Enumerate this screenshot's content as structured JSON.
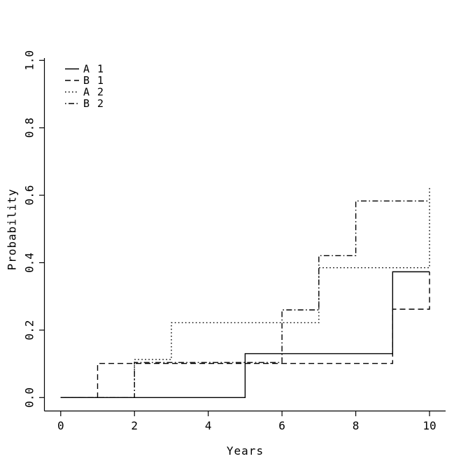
{
  "figure": {
    "background": "#ffffff",
    "foreground": "#000000"
  },
  "chart_data": {
    "type": "line",
    "subtype": "step",
    "title": "",
    "xlabel": "Years",
    "ylabel": "Probability",
    "xlim": [
      0,
      10
    ],
    "ylim": [
      0.0,
      1.0
    ],
    "xticks": [
      0,
      2,
      4,
      6,
      8,
      10
    ],
    "ytick_labels": [
      "0.0",
      "0.2",
      "0.4",
      "0.6",
      "0.8",
      "1.0"
    ],
    "ytick_values": [
      0.0,
      0.2,
      0.4,
      0.6,
      0.8,
      1.0
    ],
    "grid": false,
    "legend_position": "top-left",
    "line_color": "#000000",
    "series": [
      {
        "name": "A 1",
        "linestyle": "solid",
        "points": [
          [
            0,
            0
          ],
          [
            5,
            0
          ],
          [
            5,
            0.13
          ],
          [
            9,
            0.13
          ],
          [
            9,
            0.373
          ],
          [
            10,
            0.373
          ]
        ]
      },
      {
        "name": "B 1",
        "linestyle": "dashed",
        "points": [
          [
            0,
            0
          ],
          [
            1,
            0
          ],
          [
            1,
            0.101
          ],
          [
            9,
            0.101
          ],
          [
            9,
            0.262
          ],
          [
            10,
            0.262
          ],
          [
            10,
            0.373
          ]
        ]
      },
      {
        "name": "A 2",
        "linestyle": "dotted",
        "points": [
          [
            0,
            0
          ],
          [
            2,
            0
          ],
          [
            2,
            0.113
          ],
          [
            3,
            0.113
          ],
          [
            3,
            0.222
          ],
          [
            7,
            0.222
          ],
          [
            7,
            0.385
          ],
          [
            10,
            0.385
          ],
          [
            10,
            0.625
          ]
        ]
      },
      {
        "name": "B 2",
        "linestyle": "dashdot",
        "points": [
          [
            0,
            0
          ],
          [
            2,
            0
          ],
          [
            2,
            0.104
          ],
          [
            6,
            0.104
          ],
          [
            6,
            0.26
          ],
          [
            7,
            0.26
          ],
          [
            7,
            0.421
          ],
          [
            8,
            0.421
          ],
          [
            8,
            0.583
          ],
          [
            10,
            0.583
          ]
        ]
      }
    ]
  }
}
